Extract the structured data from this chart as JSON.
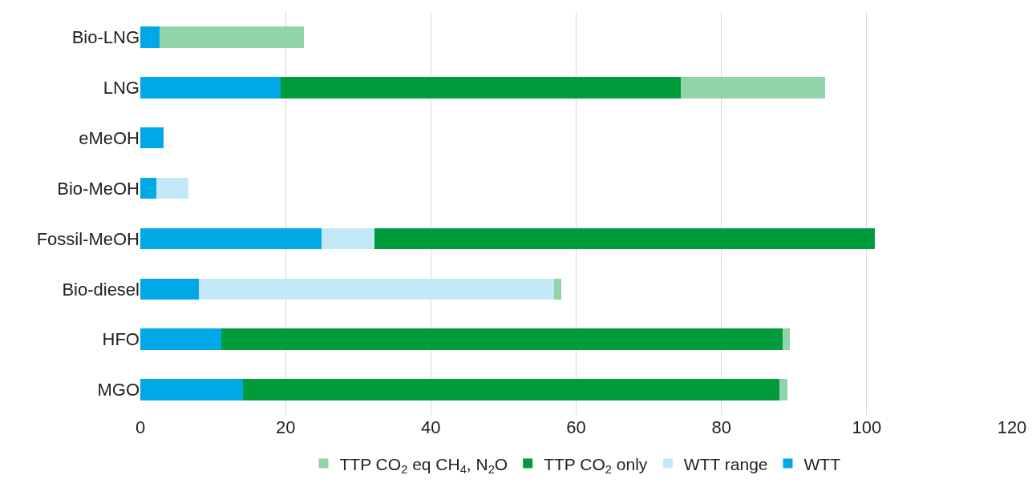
{
  "chart_data": {
    "type": "bar",
    "orientation": "horizontal",
    "stacked": true,
    "categories": [
      "Bio-LNG",
      "LNG",
      "eMeOH",
      "Bio-MeOH",
      "Fossil-MeOH",
      "Bio-diesel",
      "HFO",
      "MGO"
    ],
    "series": [
      {
        "name": "WTT",
        "color": "#00a8e6",
        "values": [
          2.6,
          19.3,
          3.2,
          2.2,
          24.9,
          8.1,
          11.2,
          14.1
        ]
      },
      {
        "name": "WTT range",
        "color": "#c3e9f8",
        "values": [
          null,
          null,
          null,
          4.4,
          7.3,
          48.9,
          null,
          null
        ]
      },
      {
        "name": "TTP CO$_{2}$ only",
        "color": "#009c3b",
        "values": [
          null,
          55.1,
          null,
          null,
          68.9,
          null,
          77.2,
          73.9
        ]
      },
      {
        "name": "TTP CO$_{2}$ eq CH$_{4}$, N$_{2}$O",
        "color": "#92d4a9",
        "values": [
          19.9,
          19.9,
          null,
          null,
          null,
          1.0,
          1.0,
          1.1
        ]
      }
    ],
    "xlim": [
      0,
      120
    ],
    "xticks": [
      0,
      20,
      40,
      60,
      80,
      100,
      120
    ],
    "grid": "x",
    "legend": "bottom"
  }
}
